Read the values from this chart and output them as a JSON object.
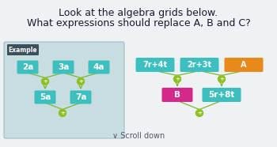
{
  "title_line1": "Look at the algebra grids below.",
  "title_line2": "What expressions should replace A, B and C?",
  "bg_color": "#eef2f5",
  "example_bg": "#ccdde0",
  "example_label_bg": "#4a5568",
  "example_label_text": "Example",
  "node_teal": "#3dbfbf",
  "node_orange": "#e8891a",
  "node_magenta": "#d4298a",
  "plus_color": "#8dc020",
  "line_color": "#7ab830",
  "ex_top_labels": [
    "2a",
    "3a",
    "4a"
  ],
  "ex_mid_labels": [
    "5a",
    "7a"
  ],
  "main_top_labels": [
    "7r+4t",
    "2r+3t",
    "A"
  ],
  "main_mid_labels": [
    "B",
    "5r+8t"
  ],
  "main_top_colors": [
    "#3dbfbf",
    "#3dbfbf",
    "#e8891a"
  ],
  "main_mid_colors": [
    "#d4298a",
    "#3dbfbf"
  ],
  "scroll_text": "∨ Scroll down",
  "white": "#ffffff",
  "dark_label": "#2d3748"
}
